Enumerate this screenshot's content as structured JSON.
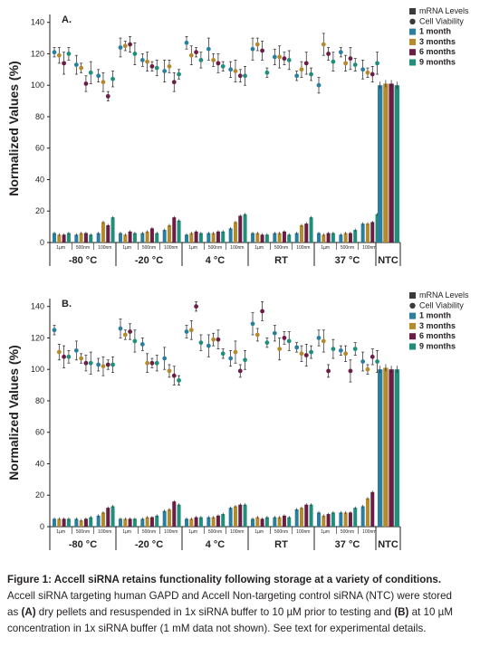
{
  "colors": {
    "m1": "#2a7f9e",
    "m3": "#b58a2c",
    "m6": "#6b1d46",
    "m9": "#1f8e7a",
    "mrna": "#3a3a3a",
    "via": "#3a3a3a",
    "ntc": "#2a7f9e"
  },
  "legend": {
    "mrna": "mRNA Levels",
    "via": "Cell Viability",
    "m1": "1 month",
    "m3": "3 months",
    "m6": "6 months",
    "m9": "9 months"
  },
  "caption": {
    "lead": "Figure 1: Accell siRNA retains functionality following storage at a variety of conditions.",
    "part1": " Accell siRNA targeting human GAPD and Accell Non-targeting control siRNA (NTC) were stored as ",
    "a_label": "(A)",
    "part2": " dry pellets and resuspended in 1x siRNA buffer to 10 µM prior to testing and ",
    "b_label": "(B)",
    "part3": " at 10 µM concentration in 1x siRNA buffer (1 mM data not shown). See text for experimental details."
  },
  "chart_data": [
    {
      "type": "bar",
      "panel_label": "A.",
      "ylabel": "Normalized Values (%)",
      "ylim": [
        0,
        145
      ],
      "yticks": [
        0,
        20,
        40,
        60,
        80,
        100,
        120,
        140
      ],
      "groups": [
        "-80 °C",
        "-20 °C",
        "4 °C",
        "RT",
        "37 °C"
      ],
      "ntc_label": "NTC",
      "subgroups": [
        "1µm",
        "500nm",
        "100nm"
      ],
      "months": [
        "1 month",
        "3 months",
        "6 months",
        "9 months"
      ],
      "mrna": [
        [
          6,
          5,
          5,
          6,
          5,
          6,
          6,
          5,
          6,
          13,
          11,
          16
        ],
        [
          6,
          5,
          7,
          6,
          6,
          7,
          9,
          6,
          8,
          11,
          16,
          14
        ],
        [
          5,
          6,
          7,
          6,
          6,
          6,
          7,
          7,
          9,
          13,
          17,
          18
        ],
        [
          6,
          6,
          5,
          5,
          6,
          6,
          7,
          5,
          6,
          11,
          12,
          16
        ],
        [
          6,
          5,
          6,
          6,
          5,
          6,
          6,
          8,
          12,
          12,
          13,
          18
        ]
      ],
      "viability": [
        [
          121,
          119,
          114,
          120,
          113,
          111,
          101,
          108,
          106,
          102,
          93,
          104
        ],
        [
          124,
          125,
          126,
          120,
          116,
          115,
          112,
          111,
          109,
          112,
          102,
          107
        ],
        [
          127,
          119,
          121,
          116,
          123,
          116,
          114,
          112,
          110,
          109,
          106,
          106
        ],
        [
          123,
          126,
          122,
          108,
          118,
          118,
          117,
          116,
          106,
          110,
          114,
          107
        ],
        [
          100,
          126,
          120,
          115,
          121,
          114,
          117,
          113,
          110,
          108,
          107,
          114
        ]
      ],
      "ntc": [
        100,
        101,
        101,
        100
      ]
    },
    {
      "type": "bar",
      "panel_label": "B.",
      "ylabel": "Normalized Values (%)",
      "ylim": [
        0,
        145
      ],
      "yticks": [
        0,
        20,
        40,
        60,
        80,
        100,
        120,
        140
      ],
      "groups": [
        "-80 °C",
        "-20 °C",
        "4 °C",
        "RT",
        "37 °C"
      ],
      "ntc_label": "NTC",
      "subgroups": [
        "1µm",
        "500nm",
        "100nm"
      ],
      "months": [
        "1 month",
        "3 months",
        "6 months",
        "9 months"
      ],
      "mrna": [
        [
          5,
          5,
          5,
          5,
          5,
          4,
          5,
          6,
          7,
          9,
          12,
          13
        ],
        [
          5,
          5,
          5,
          5,
          5,
          6,
          6,
          7,
          10,
          11,
          16,
          14
        ],
        [
          5,
          5,
          6,
          6,
          6,
          6,
          7,
          8,
          12,
          13,
          14,
          14
        ],
        [
          5,
          6,
          5,
          6,
          6,
          6,
          7,
          6,
          11,
          12,
          14,
          14
        ],
        [
          9,
          7,
          8,
          9,
          9,
          9,
          9,
          12,
          13,
          18,
          22,
          0
        ]
      ],
      "viability": [
        [
          125,
          111,
          108,
          108,
          112,
          107,
          104,
          104,
          103,
          102,
          103,
          103
        ],
        [
          126,
          122,
          124,
          118,
          116,
          104,
          104,
          104,
          107,
          99,
          96,
          93
        ],
        [
          124,
          125,
          140,
          117,
          115,
          119,
          119,
          110,
          107,
          111,
          99,
          106
        ],
        [
          129,
          122,
          137,
          117,
          123,
          113,
          120,
          118,
          114,
          110,
          109,
          111
        ],
        [
          120,
          118,
          99,
          113,
          112,
          110,
          99,
          113,
          105,
          100,
          108,
          105
        ]
      ],
      "ntc": [
        100,
        101,
        100,
        100
      ]
    }
  ]
}
